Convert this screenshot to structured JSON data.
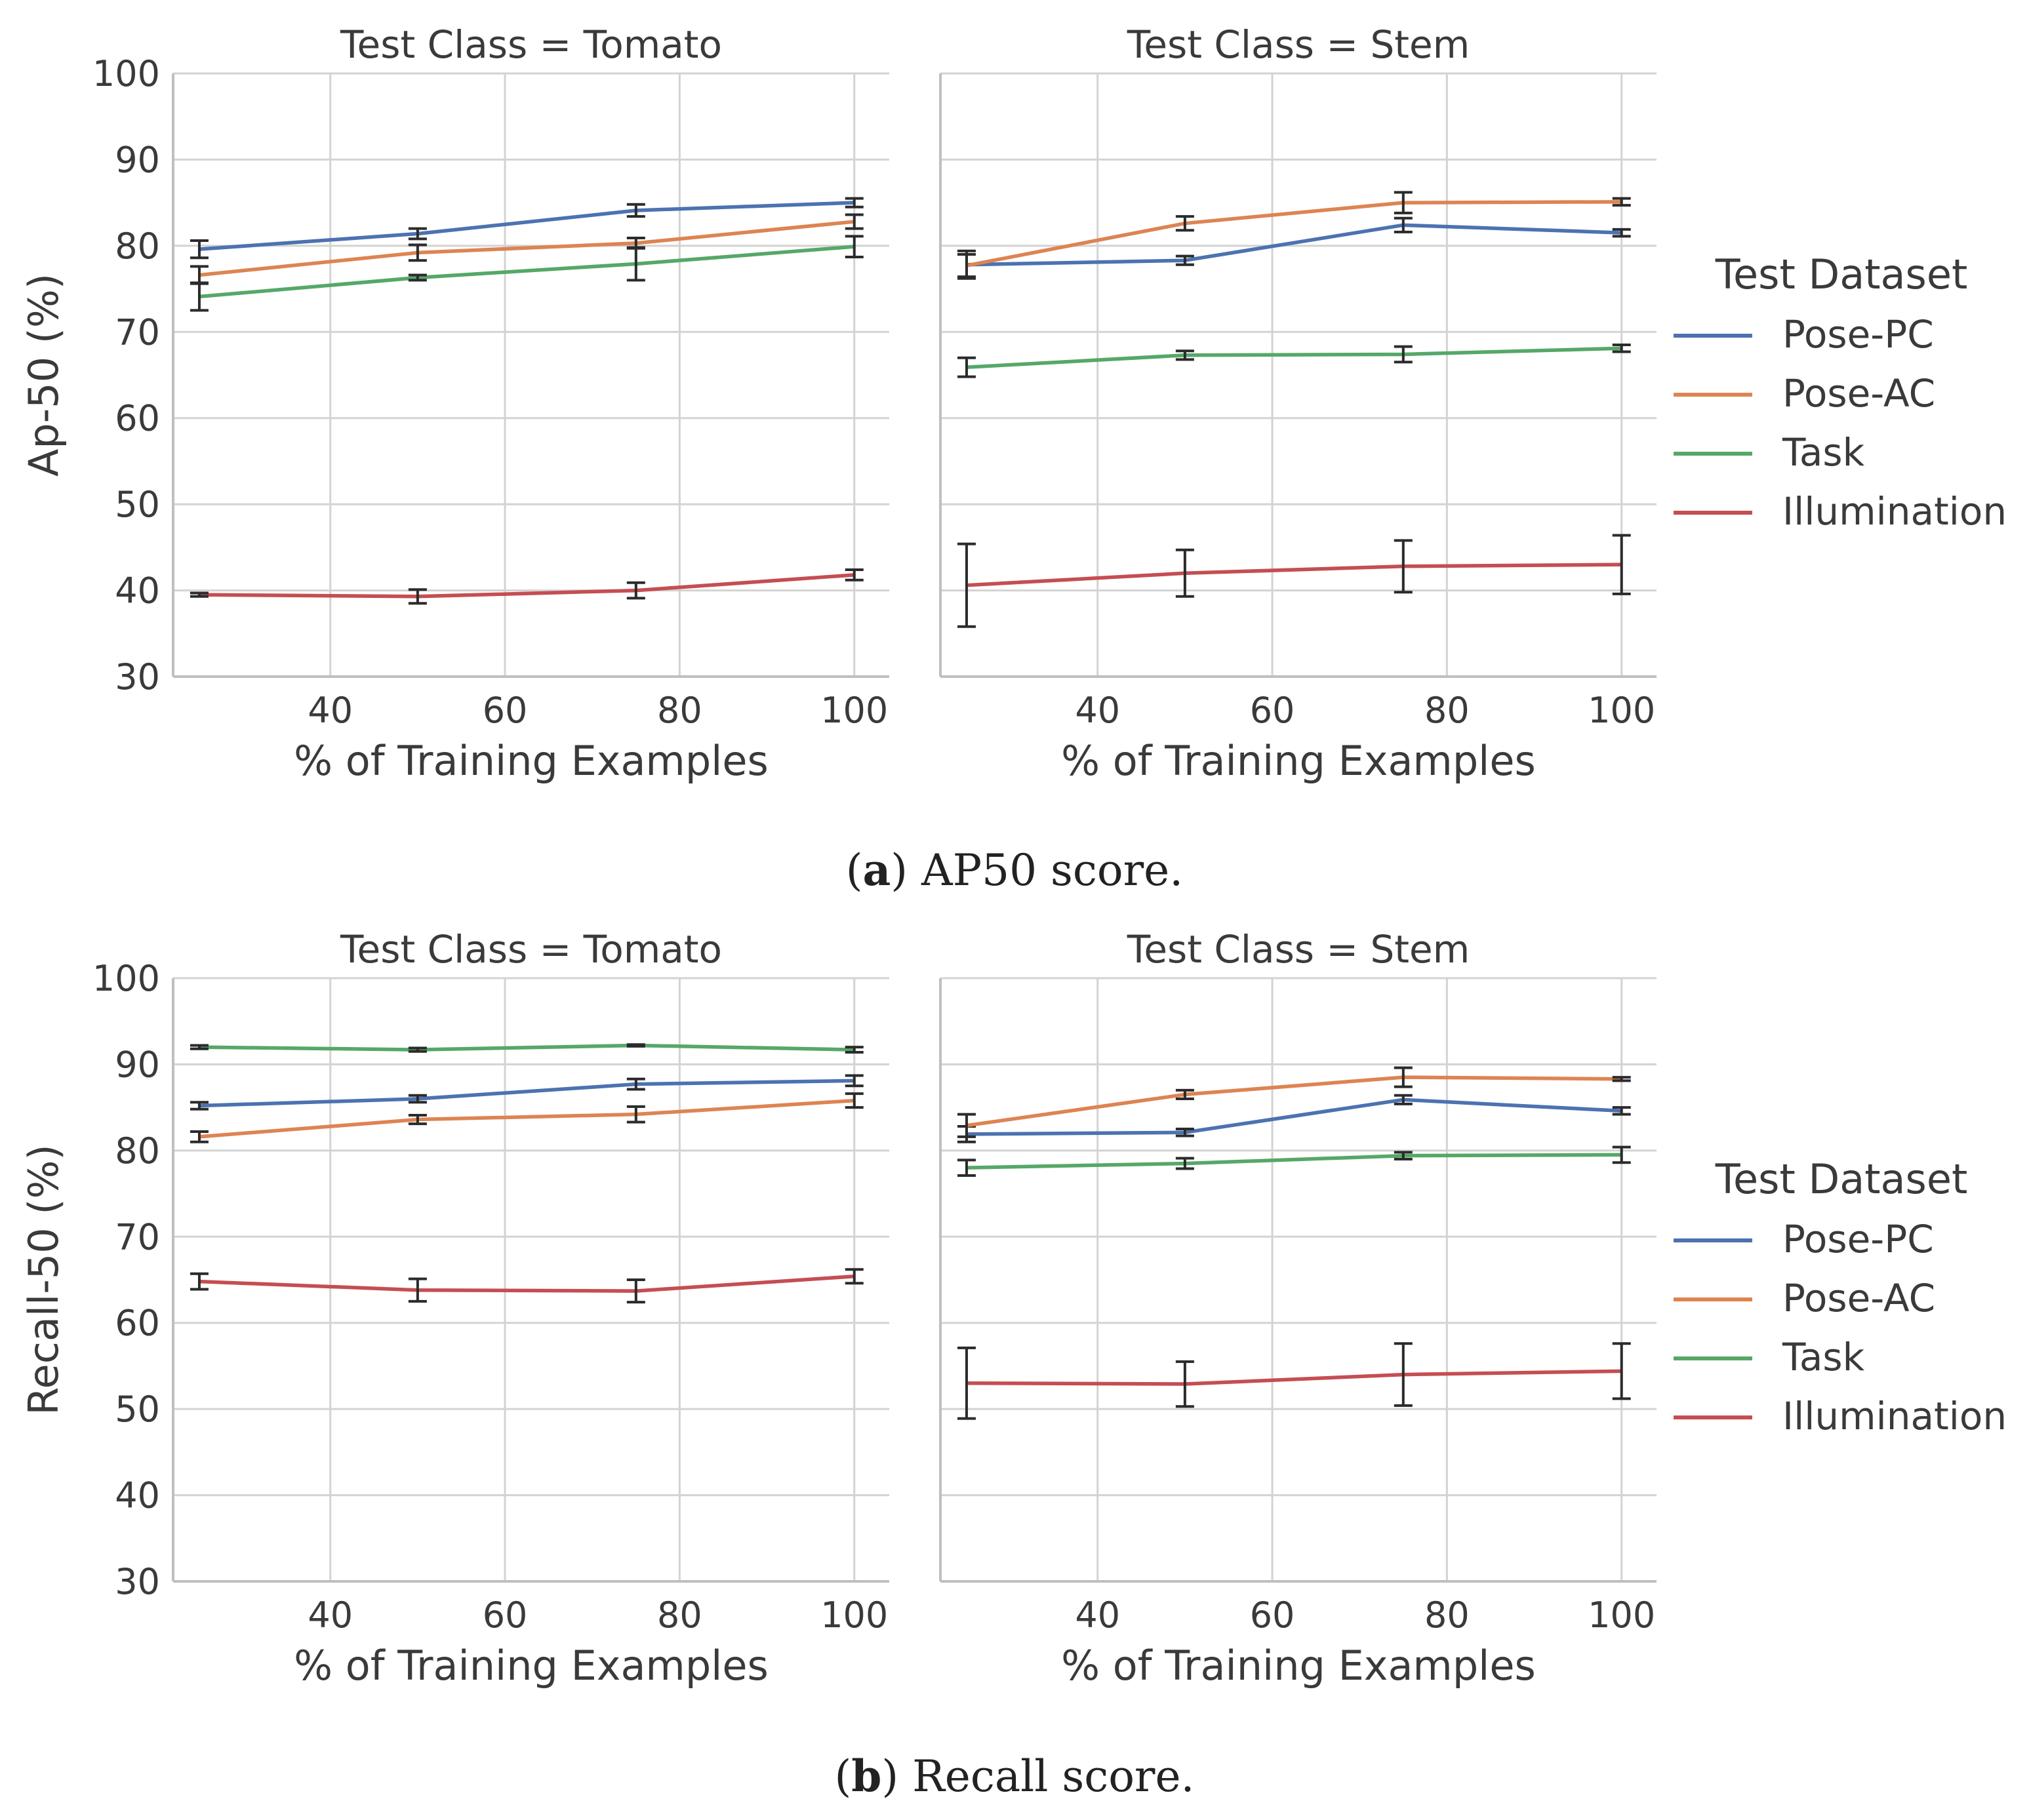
{
  "figure": {
    "captions": [
      {
        "label": "a",
        "text": " AP50 score."
      },
      {
        "label": "b",
        "text": " Recall score."
      }
    ]
  },
  "colors": {
    "Pose-PC": "#4c72b0",
    "Pose-AC": "#dd8452",
    "Task": "#55a868",
    "Illumination": "#c44e52",
    "error_bar": "#2b2b2b",
    "grid": "#d3d3d3",
    "axis": "#bfbfbf"
  },
  "chart_data": [
    {
      "type": "line",
      "row": "a",
      "title": "Test Class = Tomato",
      "xlabel": "% of Training Examples",
      "ylabel": "Ap-50 (%)",
      "x": [
        25,
        50,
        75,
        100
      ],
      "xticks": [
        40,
        60,
        80,
        100
      ],
      "yticks": [
        30,
        40,
        50,
        60,
        70,
        80,
        90,
        100
      ],
      "xlim": [
        22,
        104
      ],
      "ylim": [
        30,
        100
      ],
      "series": [
        {
          "name": "Pose-PC",
          "values": [
            79.6,
            81.4,
            84.1,
            85.0
          ],
          "err": [
            1.0,
            0.6,
            0.7,
            0.5
          ]
        },
        {
          "name": "Pose-AC",
          "values": [
            76.6,
            79.2,
            80.3,
            82.8
          ],
          "err": [
            1.0,
            0.9,
            0.6,
            0.8
          ]
        },
        {
          "name": "Task",
          "values": [
            74.1,
            76.3,
            77.9,
            79.9
          ],
          "err": [
            1.6,
            0.3,
            1.9,
            1.2
          ]
        },
        {
          "name": "Illumination",
          "values": [
            39.5,
            39.3,
            40.0,
            41.8
          ],
          "err": [
            0.2,
            0.8,
            0.9,
            0.6
          ]
        }
      ]
    },
    {
      "type": "line",
      "row": "a",
      "title": "Test Class = Stem",
      "xlabel": "% of Training Examples",
      "ylabel": "",
      "x": [
        25,
        50,
        75,
        100
      ],
      "xticks": [
        40,
        60,
        80,
        100
      ],
      "yticks": [
        30,
        40,
        50,
        60,
        70,
        80,
        90,
        100
      ],
      "xlim": [
        22,
        104
      ],
      "ylim": [
        30,
        100
      ],
      "series": [
        {
          "name": "Pose-PC",
          "values": [
            77.8,
            78.3,
            82.4,
            81.5
          ],
          "err": [
            1.6,
            0.5,
            0.8,
            0.4
          ]
        },
        {
          "name": "Pose-AC",
          "values": [
            77.7,
            82.6,
            85.0,
            85.1
          ],
          "err": [
            1.3,
            0.8,
            1.2,
            0.4
          ]
        },
        {
          "name": "Task",
          "values": [
            65.9,
            67.3,
            67.4,
            68.1
          ],
          "err": [
            1.1,
            0.5,
            0.9,
            0.4
          ]
        },
        {
          "name": "Illumination",
          "values": [
            40.6,
            42.0,
            42.8,
            43.0
          ],
          "err": [
            4.8,
            2.7,
            3.0,
            3.4
          ]
        }
      ]
    },
    {
      "type": "line",
      "row": "b",
      "title": "Test Class = Tomato",
      "xlabel": "% of Training Examples",
      "ylabel": "Recall-50 (%)",
      "x": [
        25,
        50,
        75,
        100
      ],
      "xticks": [
        40,
        60,
        80,
        100
      ],
      "yticks": [
        30,
        40,
        50,
        60,
        70,
        80,
        90,
        100
      ],
      "xlim": [
        22,
        104
      ],
      "ylim": [
        30,
        100
      ],
      "series": [
        {
          "name": "Pose-PC",
          "values": [
            85.2,
            86.0,
            87.7,
            88.1
          ],
          "err": [
            0.4,
            0.4,
            0.6,
            0.6
          ]
        },
        {
          "name": "Pose-AC",
          "values": [
            81.6,
            83.6,
            84.2,
            85.8
          ],
          "err": [
            0.6,
            0.5,
            0.9,
            0.8
          ]
        },
        {
          "name": "Task",
          "values": [
            92.0,
            91.7,
            92.2,
            91.7
          ],
          "err": [
            0.2,
            0.2,
            0.1,
            0.3
          ]
        },
        {
          "name": "Illumination",
          "values": [
            64.8,
            63.8,
            63.7,
            65.4
          ],
          "err": [
            0.9,
            1.3,
            1.3,
            0.8
          ]
        }
      ]
    },
    {
      "type": "line",
      "row": "b",
      "title": "Test Class = Stem",
      "xlabel": "% of Training Examples",
      "ylabel": "",
      "x": [
        25,
        50,
        75,
        100
      ],
      "xticks": [
        40,
        60,
        80,
        100
      ],
      "yticks": [
        30,
        40,
        50,
        60,
        70,
        80,
        90,
        100
      ],
      "xlim": [
        22,
        104
      ],
      "ylim": [
        30,
        100
      ],
      "series": [
        {
          "name": "Pose-PC",
          "values": [
            81.9,
            82.1,
            85.9,
            84.6
          ],
          "err": [
            0.9,
            0.4,
            0.5,
            0.4
          ]
        },
        {
          "name": "Pose-AC",
          "values": [
            82.9,
            86.5,
            88.5,
            88.3
          ],
          "err": [
            1.3,
            0.5,
            1.1,
            0.2
          ]
        },
        {
          "name": "Task",
          "values": [
            78.0,
            78.5,
            79.4,
            79.5
          ],
          "err": [
            0.9,
            0.6,
            0.4,
            0.9
          ]
        },
        {
          "name": "Illumination",
          "values": [
            53.0,
            52.9,
            54.0,
            54.4
          ],
          "err": [
            4.1,
            2.6,
            3.6,
            3.2
          ]
        }
      ]
    }
  ],
  "legends": [
    {
      "row": "a",
      "title": "Test Dataset",
      "placement": "right",
      "entries": [
        "Pose-PC",
        "Pose-AC",
        "Task",
        "Illumination"
      ]
    },
    {
      "row": "b",
      "title": "Test Dataset",
      "placement": "right",
      "entries": [
        "Pose-PC",
        "Pose-AC",
        "Task",
        "Illumination"
      ]
    }
  ]
}
